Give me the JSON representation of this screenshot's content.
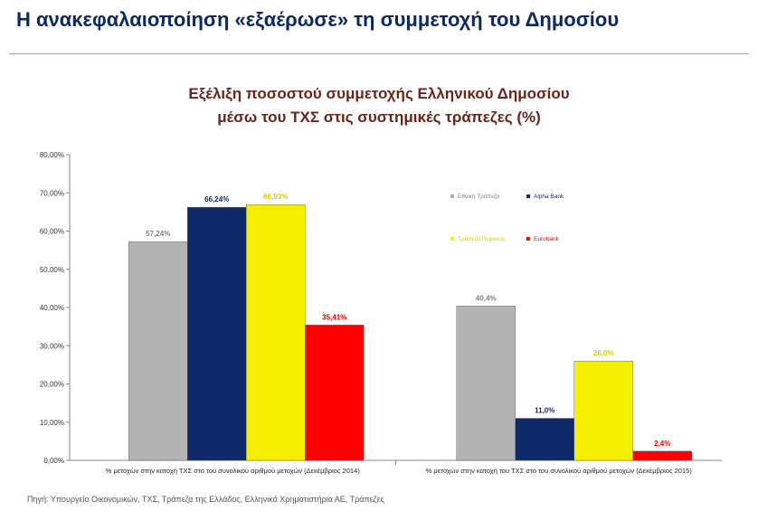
{
  "page": {
    "title": "Η ανακεφαλαιοποίηση «εξαέρωσε» τη συμμετοχή του Δημοσίου",
    "source": "Πηγή: Υπουργείο Οικονομικών, ΤΧΣ, Τράπεζα της Ελλάδος, Ελληνικά Χρηματιστήρια ΑΕ, Τράπεζες"
  },
  "chart_data": {
    "type": "bar",
    "title_line1": "Εξέλιξη ποσοστού συμμετοχής Ελληνικού Δημοσίου",
    "title_line2": "μέσω του ΤΧΣ στις συστημικές τράπεζες (%)",
    "ylim": [
      0,
      80
    ],
    "y_ticks": [
      "0,00%",
      "10,00%",
      "20,00%",
      "30,00%",
      "40,00%",
      "50,00%",
      "60,00%",
      "70,00%",
      "80,00%"
    ],
    "grid": false,
    "legend_position": "top-right",
    "categories": [
      "% μετοχών στην κατοχή ΤΧΣ στο του συνολικού αριθμού μετοχών (Δεκέμβριος 2014)",
      "% μετοχών στην κατοχή του ΤΧΣ στο του συνολικού αριθμού μετοχών (Δεκέμβριος 2015)"
    ],
    "series": [
      {
        "name": "Εθνική Τράπεζα",
        "color": "#b3b3b3",
        "values": [
          57.24,
          40.4
        ],
        "labels": [
          "57,24%",
          "40,4%"
        ],
        "label_color": "#7f7f7f"
      },
      {
        "name": "Alpha Bank",
        "color": "#0f2a6b",
        "values": [
          66.24,
          11.0
        ],
        "labels": [
          "66,24%",
          "11,0%"
        ],
        "label_color": "#0f2a6b"
      },
      {
        "name": "Τράπεζα Πειραιώς",
        "color": "#f5ef00",
        "values": [
          66.93,
          26.0
        ],
        "labels": [
          "66,93%",
          "26,0%"
        ],
        "label_color": "#d8c800"
      },
      {
        "name": "Eurobank",
        "color": "#ff0000",
        "values": [
          35.41,
          2.4
        ],
        "labels": [
          "35,41%",
          "2,4%"
        ],
        "label_color": "#e00000"
      }
    ]
  }
}
